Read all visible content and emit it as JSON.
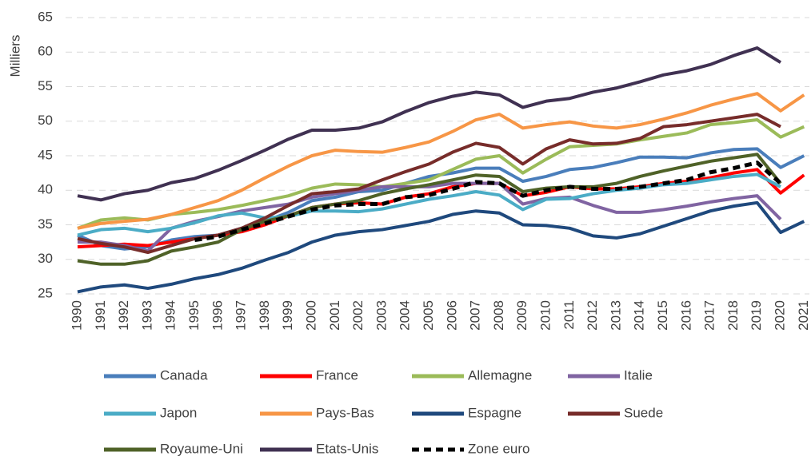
{
  "chart_data": {
    "type": "line",
    "y_label": "Milliers",
    "categories": [
      "1990",
      "1991",
      "1992",
      "1993",
      "1994",
      "1995",
      "1996",
      "1997",
      "1998",
      "1999",
      "2000",
      "2001",
      "2002",
      "2003",
      "2004",
      "2005",
      "2006",
      "2007",
      "2008",
      "2009",
      "2010",
      "2011",
      "2012",
      "2013",
      "2014",
      "2015",
      "2016",
      "2017",
      "2018",
      "2019",
      "2020",
      "2021"
    ],
    "ylim": [
      25,
      65
    ],
    "yticks": [
      25,
      30,
      35,
      40,
      45,
      50,
      55,
      60,
      65
    ],
    "grid": true,
    "legend": "bottom",
    "series": [
      {
        "name": "Canada",
        "color": "#4a7ebb",
        "values": [
          33.5,
          32,
          31.5,
          31.8,
          32.8,
          33.3,
          33.5,
          34.5,
          35.5,
          36.8,
          38.5,
          39,
          39.8,
          40,
          41,
          42,
          42.5,
          43.2,
          43.2,
          41.3,
          42,
          43,
          43.3,
          44,
          44.8,
          44.8,
          44.7,
          45.4,
          45.9,
          46,
          43.3,
          45
        ]
      },
      {
        "name": "France",
        "color": "#ff0000",
        "values": [
          31.8,
          32,
          32.2,
          32,
          32.5,
          33,
          33.5,
          34,
          35,
          36.3,
          37.5,
          38,
          38.2,
          38,
          39,
          39.5,
          40.5,
          41,
          41,
          39.2,
          39.7,
          40.5,
          40.2,
          40.2,
          40.5,
          41,
          41.3,
          41.8,
          42.5,
          43,
          39.6,
          42.2
        ]
      },
      {
        "name": "Allemagne",
        "color": "#9bbb59",
        "values": [
          34.5,
          35.7,
          36,
          35.7,
          36.5,
          36.8,
          37.2,
          37.8,
          38.5,
          39.2,
          40.3,
          40.9,
          40.8,
          40.5,
          41,
          41.5,
          43,
          44.5,
          45,
          42.5,
          44.5,
          46.3,
          46.5,
          46.7,
          47.3,
          47.8,
          48.3,
          49.5,
          49.8,
          50.2,
          47.7,
          49.2
        ]
      },
      {
        "name": "Italie",
        "color": "#8064a2",
        "values": [
          32.5,
          32.5,
          32,
          31.2,
          34.5,
          35.5,
          36.2,
          37,
          37.5,
          38,
          39,
          39.5,
          40,
          40.5,
          40.5,
          40.5,
          41,
          41,
          41,
          38,
          38.8,
          39,
          37.8,
          36.8,
          36.8,
          37.2,
          37.7,
          38.3,
          38.8,
          39.2,
          35.8,
          null
        ]
      },
      {
        "name": "Japon",
        "color": "#4bacc6",
        "values": [
          33.5,
          34.3,
          34.5,
          34,
          34.5,
          35.3,
          36.3,
          36.7,
          36,
          36.2,
          37,
          37,
          36.9,
          37.3,
          38,
          38.7,
          39.2,
          39.8,
          39.3,
          37.2,
          38.7,
          38.8,
          39.5,
          40,
          40.3,
          40.8,
          41,
          41.5,
          42,
          42.3,
          40.5,
          null
        ]
      },
      {
        "name": "Pays-Bas",
        "color": "#f79646",
        "values": [
          34.5,
          35.2,
          35.5,
          35.8,
          36.5,
          37.5,
          38.5,
          40,
          41.8,
          43.5,
          45,
          45.8,
          45.6,
          45.5,
          46.2,
          47,
          48.5,
          50.2,
          51,
          49,
          49.5,
          49.9,
          49.3,
          49,
          49.5,
          50.3,
          51.2,
          52.3,
          53.2,
          54,
          51.5,
          53.8
        ]
      },
      {
        "name": "Espagne",
        "color": "#1f497d",
        "values": [
          25.3,
          26,
          26.3,
          25.8,
          26.4,
          27.2,
          27.8,
          28.7,
          29.9,
          31,
          32.5,
          33.5,
          34,
          34.3,
          34.9,
          35.5,
          36.5,
          37,
          36.7,
          35,
          34.9,
          34.5,
          33.4,
          33.1,
          33.7,
          34.8,
          35.9,
          37,
          37.7,
          38.2,
          33.9,
          35.5
        ]
      },
      {
        "name": "Suede",
        "color": "#772c2a",
        "values": [
          33,
          32.3,
          31.8,
          31,
          32,
          33,
          33.5,
          34.5,
          36,
          37.8,
          39.5,
          39.8,
          40.2,
          41.5,
          42.7,
          43.8,
          45.5,
          46.8,
          46.2,
          43.8,
          46,
          47.3,
          46.7,
          46.8,
          47.5,
          49.2,
          49.5,
          50,
          50.5,
          51,
          49.2,
          null
        ]
      },
      {
        "name": "Royaume-Uni",
        "color": "#4f6228",
        "values": [
          29.8,
          29.3,
          29.3,
          29.8,
          31.2,
          31.8,
          32.5,
          34.3,
          35.5,
          36.3,
          37.5,
          38,
          38.5,
          39.5,
          40.2,
          40.8,
          41.5,
          42.2,
          42,
          39.8,
          40.3,
          40.5,
          40.5,
          41,
          42,
          42.8,
          43.5,
          44.2,
          44.7,
          45.2,
          41,
          null
        ]
      },
      {
        "name": "Etats-Unis",
        "color": "#403152",
        "values": [
          39.2,
          38.6,
          39.5,
          40,
          41.1,
          41.7,
          42.9,
          44.3,
          45.8,
          47.4,
          48.7,
          48.7,
          49,
          49.9,
          51.4,
          52.7,
          53.6,
          54.2,
          53.8,
          52,
          52.9,
          53.3,
          54.2,
          54.8,
          55.7,
          56.7,
          57.3,
          58.2,
          59.5,
          60.6,
          58.5,
          null
        ]
      },
      {
        "name": "Zone euro",
        "color": "#000000",
        "dashed": true,
        "values": [
          null,
          null,
          null,
          null,
          null,
          32.8,
          33.3,
          34.3,
          35.2,
          36.2,
          37.2,
          37.8,
          38,
          38,
          39,
          39.3,
          40.2,
          41.2,
          41,
          39.2,
          40,
          40.5,
          40.2,
          40.2,
          40.5,
          41,
          41.5,
          42.6,
          43.2,
          44,
          41,
          null
        ]
      }
    ]
  }
}
